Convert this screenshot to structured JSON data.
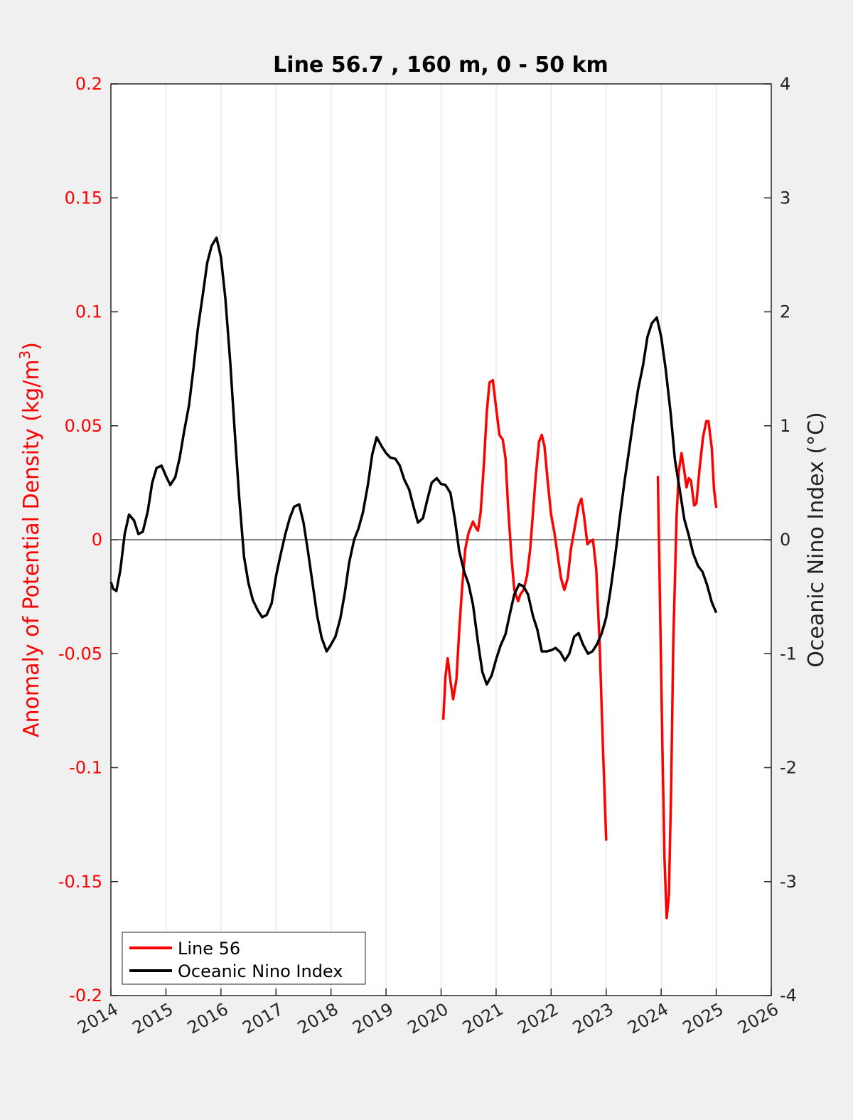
{
  "chart_data": {
    "type": "line",
    "title": "Line 56.7 , 160 m, 0 - 50 km",
    "ylabel_left": "Anomaly of Potential Density (kg/m",
    "ylabel_left_sup": "3",
    "ylabel_left_close": ")",
    "ylabel_right": "Oceanic Nino Index (°C)",
    "xlim": [
      2014,
      2026
    ],
    "ylim_left": [
      -0.2,
      0.2
    ],
    "ylim_right": [
      -4,
      4
    ],
    "x_ticks": [
      "2014",
      "2015",
      "2016",
      "2017",
      "2018",
      "2019",
      "2020",
      "2021",
      "2022",
      "2023",
      "2024",
      "2025",
      "2026"
    ],
    "y_ticks_left": [
      "0.2",
      "0.15",
      "0.1",
      "0.05",
      "0",
      "-0.05",
      "-0.1",
      "-0.15",
      "-0.2"
    ],
    "y_ticks_right": [
      "4",
      "3",
      "2",
      "1",
      "0",
      "-1",
      "-2",
      "-3",
      "-4"
    ],
    "grid": "vertical",
    "zero_line": true,
    "legend_position": "bottom-left",
    "colors": {
      "line56": "#ff0000",
      "oni": "#000000",
      "left_axis_text": "#ff0000",
      "right_axis_text": "#222222"
    },
    "series": [
      {
        "name": "Line 56",
        "axis": "left",
        "color": "#ff0000",
        "segments": [
          [
            [
              2020.04,
              -0.079
            ],
            [
              2020.08,
              -0.06
            ],
            [
              2020.12,
              -0.052
            ],
            [
              2020.17,
              -0.062
            ],
            [
              2020.22,
              -0.07
            ],
            [
              2020.28,
              -0.061
            ],
            [
              2020.33,
              -0.04
            ],
            [
              2020.38,
              -0.022
            ],
            [
              2020.44,
              -0.004
            ],
            [
              2020.5,
              0.003
            ],
            [
              2020.58,
              0.008
            ],
            [
              2020.64,
              0.005
            ],
            [
              2020.67,
              0.004
            ],
            [
              2020.72,
              0.012
            ],
            [
              2020.78,
              0.034
            ],
            [
              2020.83,
              0.056
            ],
            [
              2020.88,
              0.069
            ],
            [
              2020.94,
              0.07
            ],
            [
              2021.0,
              0.058
            ],
            [
              2021.06,
              0.046
            ],
            [
              2021.12,
              0.044
            ],
            [
              2021.17,
              0.036
            ],
            [
              2021.22,
              0.014
            ],
            [
              2021.28,
              -0.008
            ],
            [
              2021.33,
              -0.022
            ],
            [
              2021.4,
              -0.027
            ],
            [
              2021.44,
              -0.024
            ],
            [
              2021.5,
              -0.022
            ],
            [
              2021.56,
              -0.016
            ],
            [
              2021.62,
              -0.004
            ],
            [
              2021.72,
              0.028
            ],
            [
              2021.78,
              0.043
            ],
            [
              2021.83,
              0.046
            ],
            [
              2021.88,
              0.041
            ],
            [
              2021.94,
              0.025
            ],
            [
              2022.0,
              0.011
            ],
            [
              2022.06,
              0.003
            ],
            [
              2022.12,
              -0.007
            ],
            [
              2022.18,
              -0.017
            ],
            [
              2022.24,
              -0.022
            ],
            [
              2022.3,
              -0.017
            ],
            [
              2022.36,
              -0.004
            ],
            [
              2022.42,
              0.004
            ],
            [
              2022.5,
              0.015
            ],
            [
              2022.55,
              0.018
            ],
            [
              2022.6,
              0.01
            ],
            [
              2022.66,
              -0.002
            ],
            [
              2022.7,
              -0.001
            ],
            [
              2022.76,
              0.0
            ],
            [
              2022.82,
              -0.013
            ],
            [
              2022.88,
              -0.045
            ],
            [
              2022.94,
              -0.09
            ],
            [
              2023.0,
              -0.132
            ]
          ],
          [
            [
              2023.94,
              0.028
            ],
            [
              2023.98,
              -0.03
            ],
            [
              2024.02,
              -0.088
            ],
            [
              2024.06,
              -0.14
            ],
            [
              2024.1,
              -0.166
            ],
            [
              2024.14,
              -0.156
            ],
            [
              2024.18,
              -0.11
            ],
            [
              2024.22,
              -0.045
            ],
            [
              2024.28,
              0.01
            ],
            [
              2024.32,
              0.03
            ],
            [
              2024.37,
              0.038
            ],
            [
              2024.42,
              0.03
            ],
            [
              2024.46,
              0.023
            ],
            [
              2024.5,
              0.027
            ],
            [
              2024.54,
              0.026
            ],
            [
              2024.6,
              0.015
            ],
            [
              2024.64,
              0.016
            ],
            [
              2024.7,
              0.032
            ],
            [
              2024.76,
              0.045
            ],
            [
              2024.82,
              0.052
            ],
            [
              2024.86,
              0.052
            ],
            [
              2024.92,
              0.04
            ],
            [
              2024.96,
              0.022
            ],
            [
              2025.0,
              0.014
            ]
          ]
        ]
      },
      {
        "name": "Oceanic Nino Index",
        "axis": "right",
        "color": "#000000",
        "segments": [
          [
            [
              2014.0,
              -0.37
            ],
            [
              2014.04,
              -0.43
            ],
            [
              2014.1,
              -0.45
            ],
            [
              2014.17,
              -0.27
            ],
            [
              2014.25,
              0.05
            ],
            [
              2014.33,
              0.22
            ],
            [
              2014.42,
              0.17
            ],
            [
              2014.5,
              0.05
            ],
            [
              2014.58,
              0.07
            ],
            [
              2014.67,
              0.25
            ],
            [
              2014.75,
              0.5
            ],
            [
              2014.83,
              0.63
            ],
            [
              2014.92,
              0.65
            ],
            [
              2015.0,
              0.56
            ],
            [
              2015.08,
              0.48
            ],
            [
              2015.17,
              0.55
            ],
            [
              2015.25,
              0.72
            ],
            [
              2015.33,
              0.95
            ],
            [
              2015.42,
              1.18
            ],
            [
              2015.5,
              1.5
            ],
            [
              2015.58,
              1.85
            ],
            [
              2015.67,
              2.15
            ],
            [
              2015.75,
              2.43
            ],
            [
              2015.83,
              2.58
            ],
            [
              2015.92,
              2.65
            ],
            [
              2016.0,
              2.48
            ],
            [
              2016.08,
              2.12
            ],
            [
              2016.17,
              1.55
            ],
            [
              2016.25,
              0.95
            ],
            [
              2016.33,
              0.38
            ],
            [
              2016.42,
              -0.15
            ],
            [
              2016.5,
              -0.38
            ],
            [
              2016.58,
              -0.53
            ],
            [
              2016.67,
              -0.62
            ],
            [
              2016.75,
              -0.68
            ],
            [
              2016.83,
              -0.66
            ],
            [
              2016.92,
              -0.56
            ],
            [
              2017.0,
              -0.32
            ],
            [
              2017.08,
              -0.14
            ],
            [
              2017.17,
              0.05
            ],
            [
              2017.25,
              0.19
            ],
            [
              2017.33,
              0.29
            ],
            [
              2017.42,
              0.31
            ],
            [
              2017.5,
              0.15
            ],
            [
              2017.58,
              -0.1
            ],
            [
              2017.67,
              -0.4
            ],
            [
              2017.75,
              -0.67
            ],
            [
              2017.83,
              -0.86
            ],
            [
              2017.92,
              -0.98
            ],
            [
              2018.0,
              -0.92
            ],
            [
              2018.08,
              -0.85
            ],
            [
              2018.17,
              -0.69
            ],
            [
              2018.25,
              -0.47
            ],
            [
              2018.33,
              -0.2
            ],
            [
              2018.42,
              0.0
            ],
            [
              2018.5,
              0.1
            ],
            [
              2018.58,
              0.24
            ],
            [
              2018.67,
              0.48
            ],
            [
              2018.75,
              0.75
            ],
            [
              2018.83,
              0.9
            ],
            [
              2018.92,
              0.82
            ],
            [
              2019.0,
              0.76
            ],
            [
              2019.08,
              0.72
            ],
            [
              2019.17,
              0.71
            ],
            [
              2019.25,
              0.65
            ],
            [
              2019.33,
              0.53
            ],
            [
              2019.42,
              0.44
            ],
            [
              2019.5,
              0.29
            ],
            [
              2019.58,
              0.15
            ],
            [
              2019.67,
              0.19
            ],
            [
              2019.75,
              0.35
            ],
            [
              2019.83,
              0.5
            ],
            [
              2019.92,
              0.54
            ],
            [
              2020.0,
              0.49
            ],
            [
              2020.08,
              0.48
            ],
            [
              2020.17,
              0.41
            ],
            [
              2020.25,
              0.18
            ],
            [
              2020.33,
              -0.1
            ],
            [
              2020.42,
              -0.28
            ],
            [
              2020.5,
              -0.39
            ],
            [
              2020.58,
              -0.57
            ],
            [
              2020.67,
              -0.9
            ],
            [
              2020.75,
              -1.16
            ],
            [
              2020.83,
              -1.27
            ],
            [
              2020.92,
              -1.19
            ],
            [
              2021.0,
              -1.05
            ],
            [
              2021.08,
              -0.93
            ],
            [
              2021.17,
              -0.83
            ],
            [
              2021.25,
              -0.65
            ],
            [
              2021.33,
              -0.48
            ],
            [
              2021.42,
              -0.39
            ],
            [
              2021.5,
              -0.41
            ],
            [
              2021.58,
              -0.48
            ],
            [
              2021.67,
              -0.67
            ],
            [
              2021.75,
              -0.79
            ],
            [
              2021.83,
              -0.98
            ],
            [
              2021.92,
              -0.98
            ],
            [
              2022.0,
              -0.97
            ],
            [
              2022.08,
              -0.95
            ],
            [
              2022.17,
              -0.99
            ],
            [
              2022.25,
              -1.06
            ],
            [
              2022.33,
              -1.0
            ],
            [
              2022.42,
              -0.85
            ],
            [
              2022.5,
              -0.82
            ],
            [
              2022.58,
              -0.92
            ],
            [
              2022.67,
              -1.0
            ],
            [
              2022.75,
              -0.98
            ],
            [
              2022.83,
              -0.92
            ],
            [
              2022.92,
              -0.82
            ],
            [
              2023.0,
              -0.68
            ],
            [
              2023.08,
              -0.44
            ],
            [
              2023.17,
              -0.12
            ],
            [
              2023.25,
              0.2
            ],
            [
              2023.33,
              0.5
            ],
            [
              2023.42,
              0.8
            ],
            [
              2023.5,
              1.07
            ],
            [
              2023.58,
              1.32
            ],
            [
              2023.67,
              1.53
            ],
            [
              2023.75,
              1.78
            ],
            [
              2023.83,
              1.9
            ],
            [
              2023.92,
              1.95
            ],
            [
              2024.0,
              1.78
            ],
            [
              2024.08,
              1.5
            ],
            [
              2024.17,
              1.12
            ],
            [
              2024.25,
              0.7
            ],
            [
              2024.33,
              0.46
            ],
            [
              2024.42,
              0.18
            ],
            [
              2024.5,
              0.04
            ],
            [
              2024.58,
              -0.12
            ],
            [
              2024.67,
              -0.23
            ],
            [
              2024.75,
              -0.28
            ],
            [
              2024.83,
              -0.39
            ],
            [
              2024.92,
              -0.55
            ],
            [
              2025.0,
              -0.64
            ]
          ]
        ]
      }
    ]
  }
}
